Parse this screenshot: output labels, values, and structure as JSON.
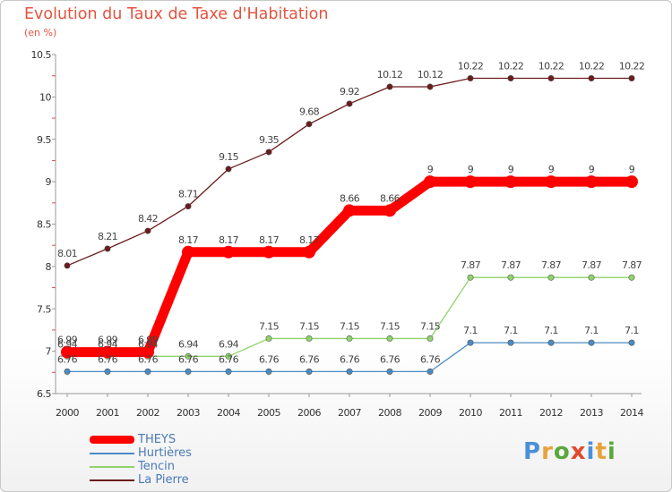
{
  "header": {
    "title": "Evolution du Taux de Taxe d'Habitation",
    "subtitle": "(en %)"
  },
  "logo": {
    "text": "Proxiti",
    "colors": [
      "#4a90d9",
      "#e8a33c",
      "#5aa83c",
      "#e04a2a",
      "#4a90d9",
      "#e8a33c",
      "#5aa83c"
    ]
  },
  "chart_data": {
    "type": "line",
    "title": "Evolution du Taux de Taxe d'Habitation",
    "subtitle": "(en %)",
    "x": [
      "2000",
      "2001",
      "2002",
      "2003",
      "2004",
      "2005",
      "2006",
      "2007",
      "2008",
      "2009",
      "2010",
      "2011",
      "2012",
      "2013",
      "2014"
    ],
    "yticks": [
      "6.5",
      "7",
      "7.5",
      "8",
      "8.5",
      "9",
      "9.5",
      "10",
      "10.5"
    ],
    "ylim": [
      6.5,
      10.5
    ],
    "grid": false,
    "legend_position": "bottom-left",
    "series": [
      {
        "name": "THEYS",
        "color": "#ff0000",
        "values": [
          6.99,
          6.99,
          6.99,
          8.17,
          8.17,
          8.17,
          8.17,
          8.66,
          8.66,
          9,
          9,
          9,
          9,
          9,
          9
        ],
        "labels": [
          "6.99",
          "6.99",
          "6.99",
          "8.17",
          "8.17",
          "8.17",
          "8.17",
          "8.66",
          "8.66",
          "9",
          "9",
          "9",
          "9",
          "9",
          "9"
        ]
      },
      {
        "name": "Hurtières",
        "color": "#4a8cc4",
        "values": [
          6.76,
          6.76,
          6.76,
          6.76,
          6.76,
          6.76,
          6.76,
          6.76,
          6.76,
          6.76,
          7.1,
          7.1,
          7.1,
          7.1,
          7.1
        ],
        "labels": [
          "6.76",
          "6.76",
          "6.76",
          "6.76",
          "6.76",
          "6.76",
          "6.76",
          "6.76",
          "6.76",
          "6.76",
          "7.1",
          "7.1",
          "7.1",
          "7.1",
          "7.1"
        ]
      },
      {
        "name": "Tencin",
        "color": "#8fd36a",
        "values": [
          6.94,
          6.94,
          6.94,
          6.94,
          6.94,
          7.15,
          7.15,
          7.15,
          7.15,
          7.15,
          7.87,
          7.87,
          7.87,
          7.87,
          7.87
        ],
        "labels": [
          "6.94",
          "6.94",
          "6.94",
          "6.94",
          "6.94",
          "7.15",
          "7.15",
          "7.15",
          "7.15",
          "7.15",
          "7.87",
          "7.87",
          "7.87",
          "7.87",
          "7.87"
        ]
      },
      {
        "name": "La Pierre",
        "color": "#6b1b1b",
        "values": [
          8.01,
          8.21,
          8.42,
          8.71,
          9.15,
          9.35,
          9.68,
          9.92,
          10.12,
          10.12,
          10.22,
          10.22,
          10.22,
          10.22,
          10.22
        ],
        "labels": [
          "8.01",
          "8.21",
          "8.42",
          "8.71",
          "9.15",
          "9.35",
          "9.68",
          "9.92",
          "10.12",
          "10.12",
          "10.22",
          "10.22",
          "10.22",
          "10.22",
          "10.22"
        ]
      }
    ]
  }
}
